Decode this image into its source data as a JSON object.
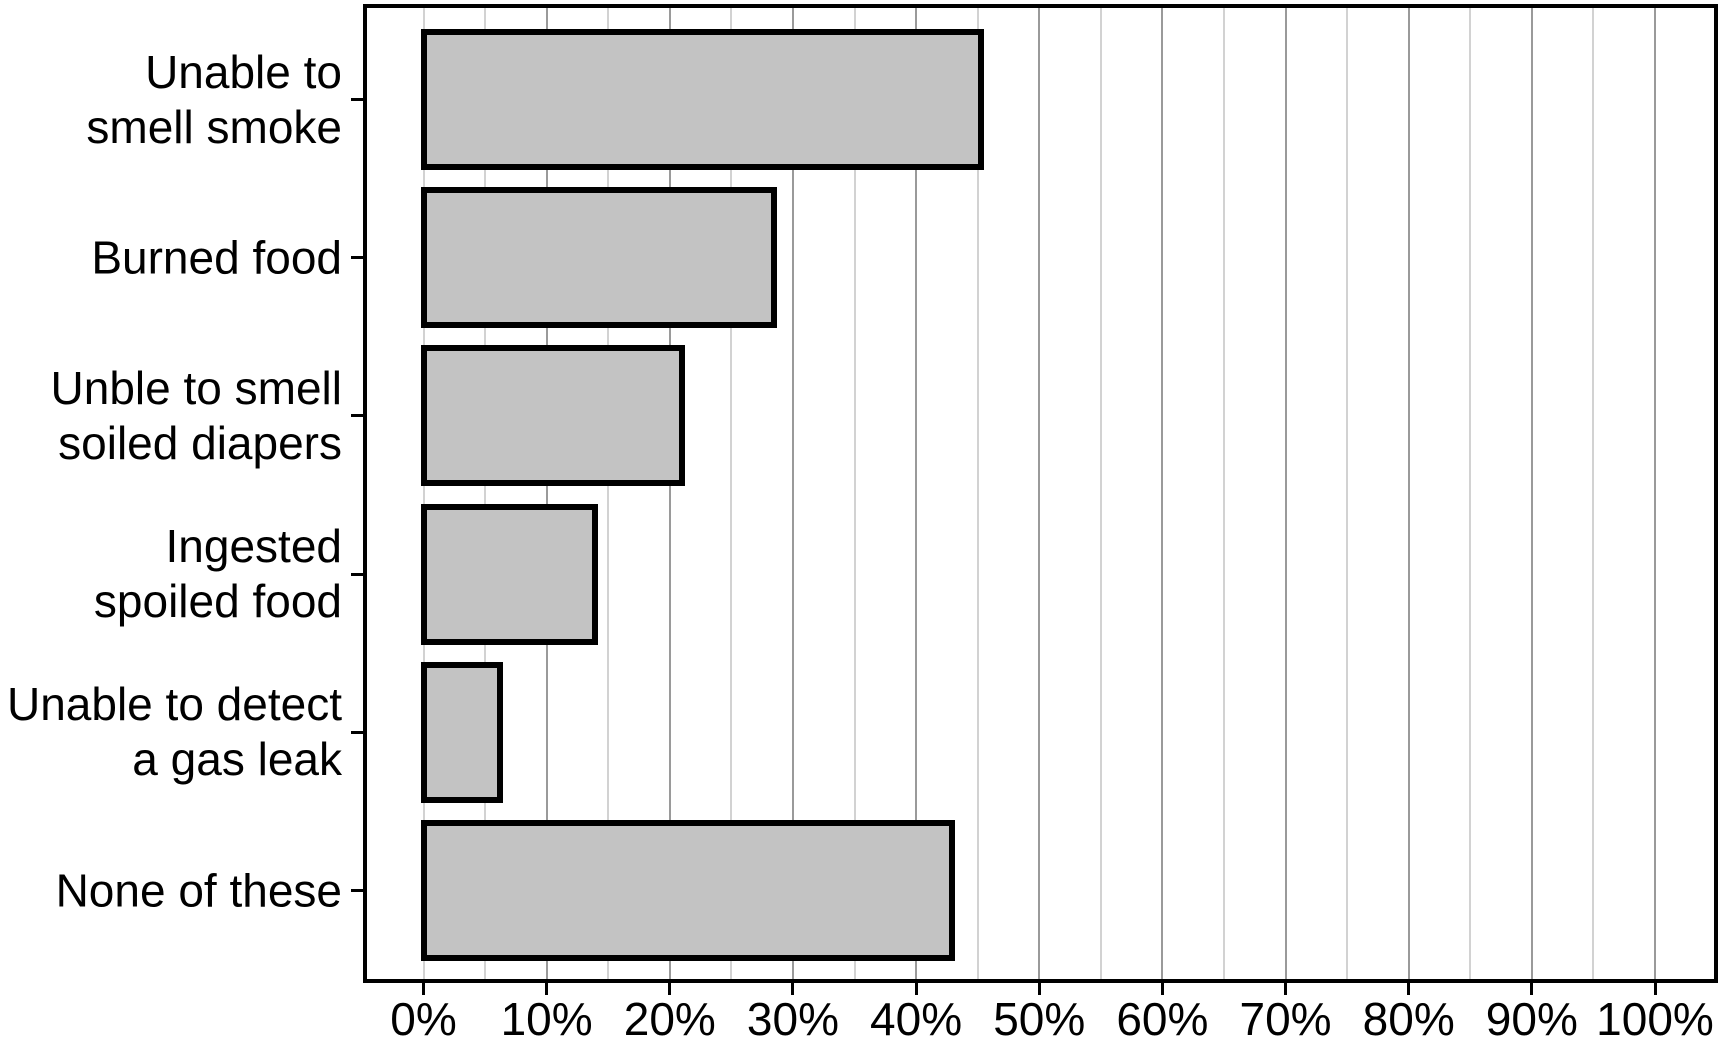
{
  "chart_data": {
    "type": "bar",
    "orientation": "horizontal",
    "title": "",
    "xlabel": "",
    "ylabel": "",
    "categories": [
      "Unable to smell smoke",
      "Burned food",
      "Unble to smell soiled diapers",
      "Ingested spoiled food",
      "Unable to detect a gas leak",
      "None of these"
    ],
    "category_lines": [
      [
        "Unable to",
        "smell smoke"
      ],
      [
        "Burned food"
      ],
      [
        "Unble to smell",
        "soiled diapers"
      ],
      [
        "Ingested",
        "spoiled food"
      ],
      [
        "Unable to detect",
        "a gas leak"
      ],
      [
        "None of these"
      ]
    ],
    "values": [
      45.3,
      28.5,
      21.0,
      13.9,
      6.2,
      42.9
    ],
    "unit": "%",
    "xlim": [
      0,
      100
    ],
    "x_major_ticks": [
      0,
      10,
      20,
      30,
      40,
      50,
      60,
      70,
      80,
      90,
      100
    ],
    "x_tick_labels": [
      "0%",
      "10%",
      "20%",
      "30%",
      "40%",
      "50%",
      "60%",
      "70%",
      "80%",
      "90%",
      "100%"
    ],
    "x_minor_step": 5,
    "grid": "vertical gridlines every 5% (minor light, major at 10% darker)",
    "legend": "none",
    "colors": {
      "bar_fill": "#c3c3c3",
      "bar_edge": "#000000",
      "frame": "#000000",
      "grid_major": "#9a9a9a",
      "grid_minor": "#d2d2d2",
      "background": "#ffffff",
      "text": "#000000"
    }
  }
}
